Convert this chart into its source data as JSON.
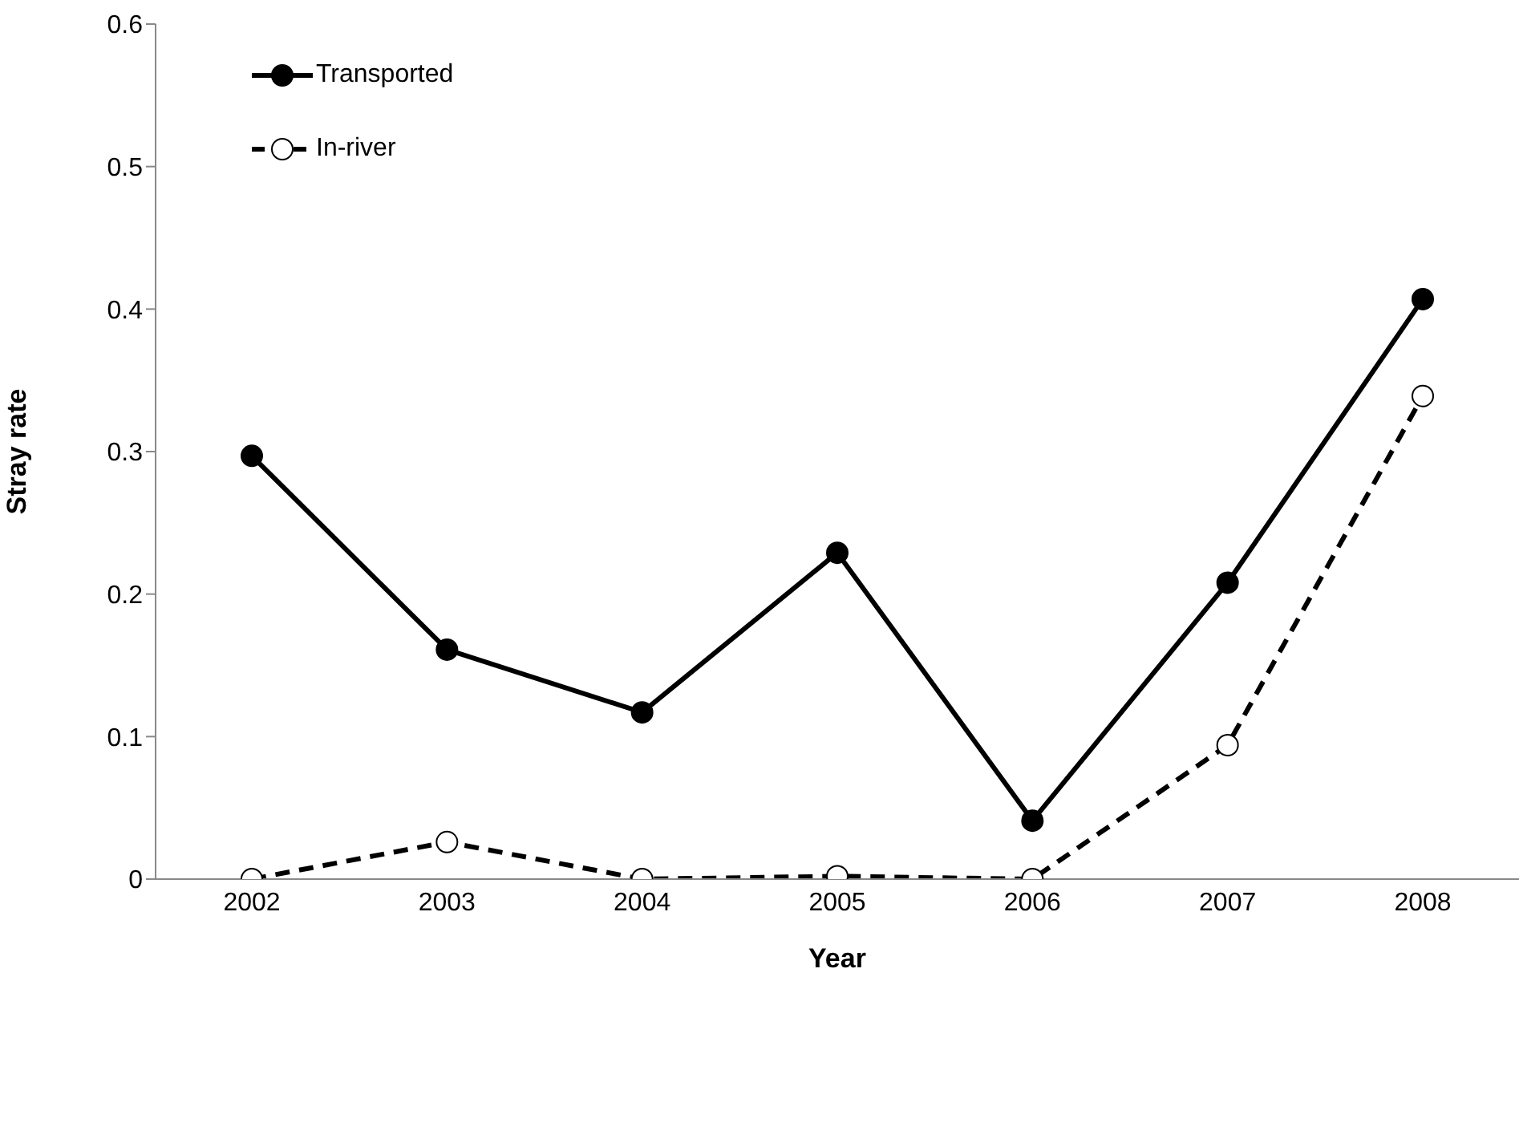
{
  "chart_data": {
    "type": "line",
    "xlabel": "Year",
    "ylabel": "Stray rate",
    "categories": [
      "2002",
      "2003",
      "2004",
      "2005",
      "2006",
      "2007",
      "2008"
    ],
    "series": [
      {
        "name": "Transported",
        "color": "#000000",
        "line_style": "solid",
        "values": [
          0.297,
          0.161,
          0.117,
          0.229,
          0.041,
          0.208,
          0.407
        ]
      },
      {
        "name": "In-river",
        "color": "#000000",
        "line_style": "dashed",
        "values": [
          0,
          0.026,
          0,
          0.002,
          0,
          0.094,
          0.339
        ]
      }
    ],
    "ylim": [
      0,
      0.6
    ],
    "yticks": [
      0,
      0.1,
      0.2,
      0.3,
      0.4,
      0.5,
      0.6
    ],
    "grid": false,
    "legend": "top left",
    "marker": "circle"
  }
}
